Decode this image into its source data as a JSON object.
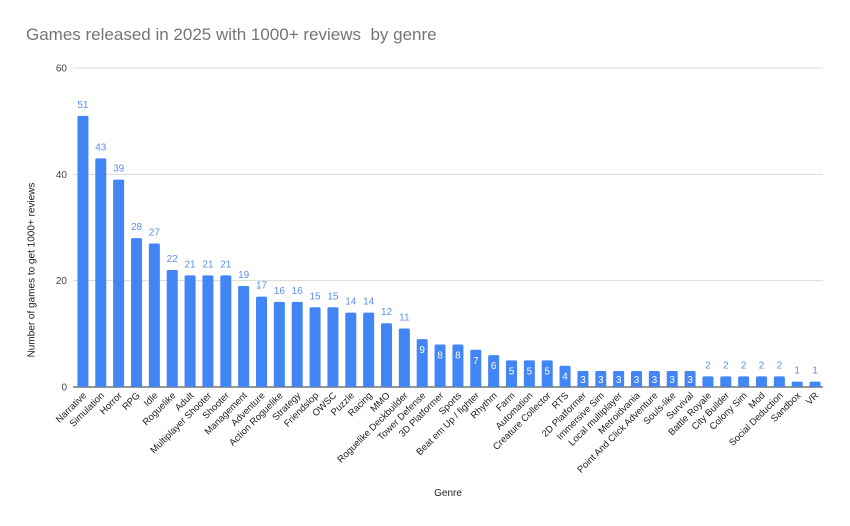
{
  "chart_data": {
    "type": "bar",
    "title": "Games released in 2025 with 1000+ reviews  by genre",
    "xlabel": "Genre",
    "ylabel": "Number of games to get 1000+ reviews",
    "ylim": [
      0,
      60
    ],
    "yticks": [
      0,
      20,
      40,
      60
    ],
    "grid": true,
    "legend": "none",
    "bar_color": "#4285f4",
    "label_color": "#5b8fe8",
    "categories": [
      "Narrative",
      "Simulation",
      "Horror",
      "RPG",
      "Idle",
      "Roguelike",
      "Adult",
      "Multiplayer Shooter",
      "Shooter",
      "Management",
      "Adventure",
      "Action Roguelike",
      "Strategy",
      "Friendslop",
      "OWSC",
      "Puzzle",
      "Racing",
      "MMO",
      "Roguelike Deckbuilder",
      "Tower Defense",
      "3D Platformer",
      "Sports",
      "Beat em Up / fighter",
      "Rhythm",
      "Farm",
      "Automation",
      "Creature Collector",
      "RTS",
      "2D Platformer",
      "Immersive Sim",
      "Local multiplayer",
      "Metroidvania",
      "Point And Click Adventure",
      "Souls-like",
      "Survival",
      "Battle Royale",
      "City Builder",
      "Colony Sim",
      "Mod",
      "Social Deduction",
      "Sandbox",
      "VR"
    ],
    "values": [
      51,
      43,
      39,
      28,
      27,
      22,
      21,
      21,
      21,
      19,
      17,
      16,
      16,
      15,
      15,
      14,
      14,
      12,
      11,
      9,
      8,
      8,
      7,
      6,
      5,
      5,
      5,
      4,
      3,
      3,
      3,
      3,
      3,
      3,
      3,
      2,
      2,
      2,
      2,
      2,
      1,
      1
    ]
  }
}
